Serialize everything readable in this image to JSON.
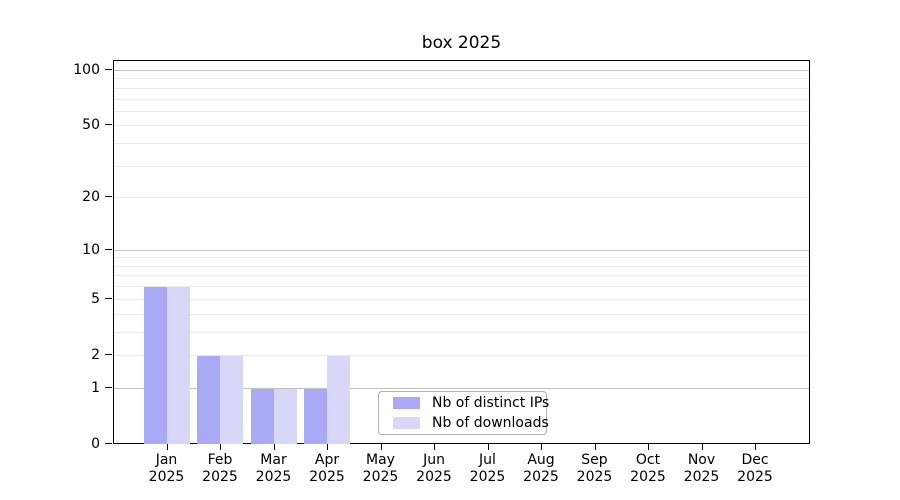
{
  "chart_data": {
    "type": "bar",
    "title": "box 2025",
    "categories": [
      "Jan",
      "Feb",
      "Mar",
      "Apr",
      "May",
      "Jun",
      "Jul",
      "Aug",
      "Sep",
      "Oct",
      "Nov",
      "Dec"
    ],
    "x_axis": {
      "year_label": "2025"
    },
    "series": [
      {
        "name": "Nb of distinct IPs",
        "color": "#a9a9f6",
        "values": [
          6,
          2,
          1,
          1,
          0,
          0,
          0,
          0,
          0,
          0,
          0,
          0
        ]
      },
      {
        "name": "Nb of downloads",
        "color": "#d7d7f8",
        "values": [
          6,
          2,
          1,
          2,
          0,
          0,
          0,
          0,
          0,
          0,
          0,
          0
        ]
      }
    ],
    "y_axis": {
      "scale": "log1p",
      "ticks": [
        0,
        1,
        2,
        5,
        10,
        20,
        50,
        100
      ],
      "major_gridlines": [
        1,
        10,
        100
      ],
      "minor_gridlines": [
        2,
        3,
        4,
        5,
        6,
        7,
        8,
        9,
        20,
        30,
        40,
        50,
        60,
        70,
        80,
        90
      ],
      "range_labeled": [
        0,
        100
      ]
    },
    "legend": {
      "position": "lower-center"
    },
    "colors": {
      "axis": "#000000",
      "grid_major": "#c3c3c3",
      "grid_minor": "#eaeaea",
      "legend_border": "#b0b0b0",
      "background": "#ffffff"
    }
  }
}
